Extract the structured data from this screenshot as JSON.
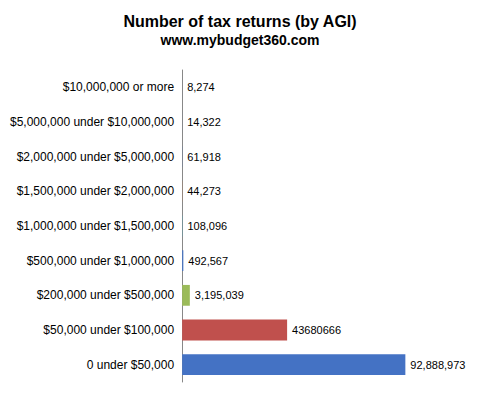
{
  "chart_data": {
    "type": "bar",
    "orientation": "horizontal",
    "title": "Number of tax returns (by AGI)",
    "subtitle": "www.mybudget360.com",
    "categories": [
      "$10,000,000 or more",
      "$5,000,000 under $10,000,000",
      "$2,000,000 under $5,000,000",
      "$1,500,000 under $2,000,000",
      "$1,000,000 under $1,500,000",
      "$500,000 under $1,000,000",
      "$200,000 under $500,000",
      "$50,000 under $100,000",
      "0 under $50,000"
    ],
    "values": [
      8274,
      14322,
      61918,
      44273,
      108096,
      492567,
      3195039,
      43680666,
      92888973
    ],
    "value_labels": [
      "8,274",
      "14,322",
      "61,918",
      "44,273",
      "108,096",
      "492,567",
      "3,195,039",
      "43680666",
      "92,888,973"
    ],
    "colors": [
      "#4472c4",
      "#4472c4",
      "#4472c4",
      "#ed7d31",
      "#4bacc6",
      "#4472c4",
      "#9bbb59",
      "#c0504d",
      "#4472c4"
    ],
    "xlim": [
      0,
      111466767.6
    ],
    "data_labels": true,
    "tick_labels": "y",
    "grid": false
  }
}
